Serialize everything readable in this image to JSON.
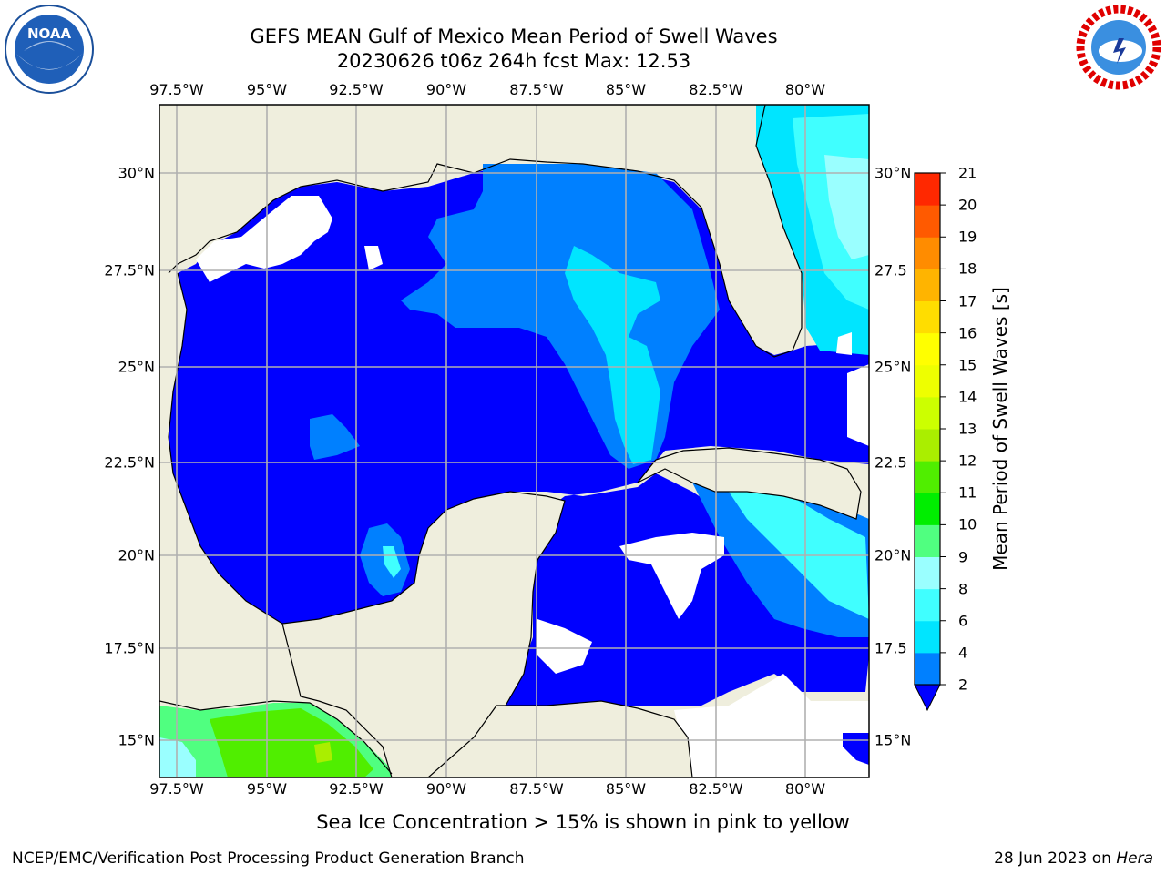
{
  "title": {
    "line1": "GEFS MEAN Gulf of Mexico Mean Period of Swell Waves",
    "line2": "20230626 t06z 264h fcst   Max: 12.53"
  },
  "map": {
    "lon_ticks": [
      "97.5°W",
      "95°W",
      "92.5°W",
      "90°W",
      "87.5°W",
      "85°W",
      "82.5°W",
      "80°W"
    ],
    "lat_ticks_left": [
      "30°N",
      "27.5°N",
      "25°N",
      "22.5°N",
      "20°N",
      "17.5°N",
      "15°N"
    ],
    "lat_ticks_right": [
      "30°N",
      "27.5",
      "25°N",
      "22.5",
      "20°N",
      "17.5",
      "15°N"
    ],
    "colors": {
      "land": "#efeedd",
      "ocean_low": "#0000ff",
      "grid": "#b0b0b0"
    }
  },
  "colorbar": {
    "label": "Mean Period of Swell Waves [s]",
    "levels": [
      "2",
      "4",
      "6",
      "8",
      "9",
      "10",
      "11",
      "12",
      "13",
      "14",
      "15",
      "16",
      "17",
      "18",
      "19",
      "20",
      "21"
    ],
    "colors": [
      "#0080ff",
      "#00e5ff",
      "#40ffff",
      "#9affff",
      "#50ff80",
      "#00ee00",
      "#50ee00",
      "#aaee00",
      "#ccff00",
      "#eeff00",
      "#ffff00",
      "#ffdd00",
      "#ffb400",
      "#ff8c00",
      "#ff5a00",
      "#ff2800"
    ],
    "extend_color": "#0000ff"
  },
  "chart_data": {
    "type": "heatmap",
    "title": "GEFS MEAN Gulf of Mexico Mean Period of Swell Waves",
    "variable": "Mean Period of Swell Waves [s]",
    "max_value": 12.53,
    "lon_range": [
      -98,
      -79
    ],
    "lat_range": [
      14,
      31.5
    ],
    "levels": [
      2,
      4,
      6,
      8,
      9,
      10,
      11,
      12,
      13,
      14,
      15,
      16,
      17,
      18,
      19,
      20,
      21
    ]
  },
  "note": "Sea Ice Concentration > 15% is shown in pink to yellow",
  "footer": {
    "left": "NCEP/EMC/Verification Post Processing Product Generation Branch",
    "date": "28 Jun 2023 on",
    "host": "Hera"
  },
  "logos": {
    "left": "noaa-logo",
    "right": "nws-logo"
  }
}
